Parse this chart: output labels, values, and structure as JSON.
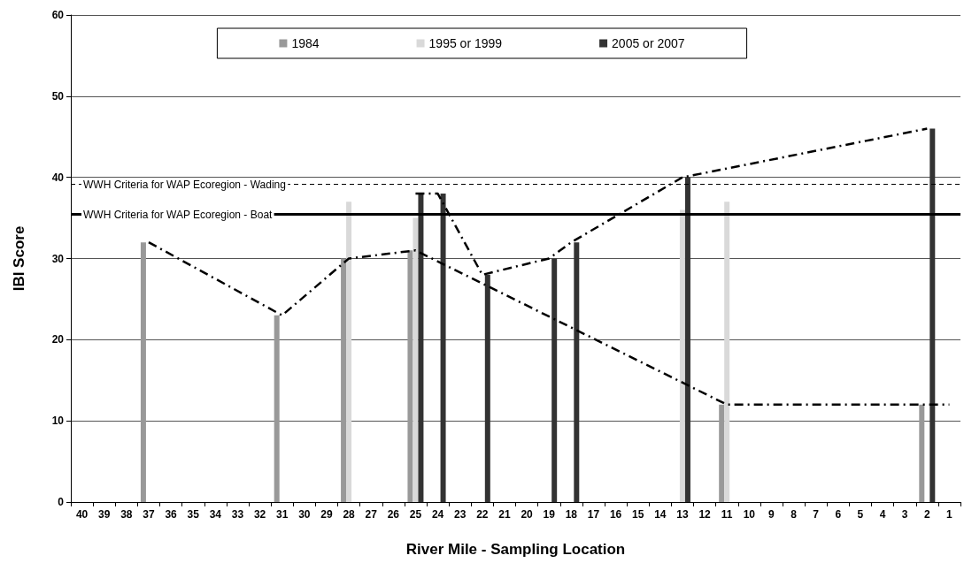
{
  "chart_data": {
    "type": "bar",
    "xlabel": "River Mile - Sampling Location",
    "ylabel": "IBI Score",
    "categories": [
      "40",
      "39",
      "38",
      "37",
      "36",
      "35",
      "34",
      "33",
      "32",
      "31",
      "30",
      "29",
      "28",
      "27",
      "26",
      "25",
      "24",
      "23",
      "22",
      "21",
      "20",
      "19",
      "18",
      "17",
      "16",
      "15",
      "14",
      "13",
      "12",
      "11",
      "10",
      "9",
      "8",
      "7",
      "6",
      "5",
      "4",
      "3",
      "2",
      "1"
    ],
    "series": [
      {
        "name": "1984",
        "color": "#999999",
        "values": [
          null,
          null,
          null,
          32,
          null,
          null,
          null,
          null,
          null,
          23,
          null,
          null,
          30,
          null,
          null,
          31,
          null,
          null,
          null,
          null,
          null,
          null,
          null,
          null,
          null,
          null,
          null,
          null,
          null,
          12,
          null,
          null,
          null,
          null,
          null,
          null,
          null,
          null,
          12,
          null
        ]
      },
      {
        "name": "1995 or 1999",
        "color": "#d9d9d9",
        "values": [
          null,
          null,
          null,
          null,
          null,
          null,
          null,
          null,
          null,
          null,
          null,
          null,
          37,
          null,
          null,
          35,
          null,
          null,
          null,
          null,
          null,
          null,
          null,
          null,
          null,
          null,
          null,
          36,
          null,
          37,
          null,
          null,
          null,
          null,
          null,
          null,
          null,
          null,
          null,
          null
        ]
      },
      {
        "name": "2005 or 2007",
        "color": "#333333",
        "values": [
          null,
          null,
          null,
          null,
          null,
          null,
          null,
          null,
          null,
          null,
          null,
          null,
          null,
          null,
          null,
          38,
          38,
          null,
          28,
          null,
          null,
          30,
          32,
          null,
          null,
          null,
          null,
          40,
          null,
          null,
          null,
          null,
          null,
          null,
          null,
          null,
          null,
          null,
          46,
          null
        ]
      },
      {
        "type": "line",
        "line_style": "dashed",
        "color": "#000000",
        "values": [
          null,
          null,
          null,
          32,
          null,
          null,
          null,
          null,
          null,
          23,
          null,
          null,
          30,
          null,
          null,
          31,
          null,
          null,
          null,
          null,
          null,
          null,
          null,
          null,
          null,
          null,
          null,
          null,
          null,
          12,
          null,
          null,
          null,
          null,
          null,
          null,
          null,
          null,
          12,
          12
        ]
      },
      {
        "type": "line",
        "line_style": "dashed",
        "color": "#000000",
        "values": [
          null,
          null,
          null,
          null,
          null,
          null,
          null,
          null,
          null,
          null,
          null,
          null,
          null,
          null,
          null,
          38,
          38,
          null,
          28,
          null,
          null,
          30,
          32,
          null,
          null,
          null,
          null,
          40,
          null,
          null,
          null,
          null,
          null,
          null,
          null,
          null,
          null,
          null,
          46,
          null
        ]
      }
    ],
    "ylim": [
      0,
      60
    ],
    "yticks": [
      0,
      10,
      20,
      30,
      40,
      50,
      60
    ],
    "grid": "y",
    "legend": "top",
    "marker": "none",
    "ref_lines": [
      {
        "axis": "y",
        "value": 39.2,
        "label": "WWH Criteria for WAP Ecoregion - Wading",
        "color": "#000000",
        "line_style": "dashed"
      },
      {
        "axis": "y",
        "value": 35.5,
        "label": "WWH Criteria for WAP Ecoregion - Boat",
        "color": "#000000",
        "line_style": "solid"
      }
    ]
  }
}
